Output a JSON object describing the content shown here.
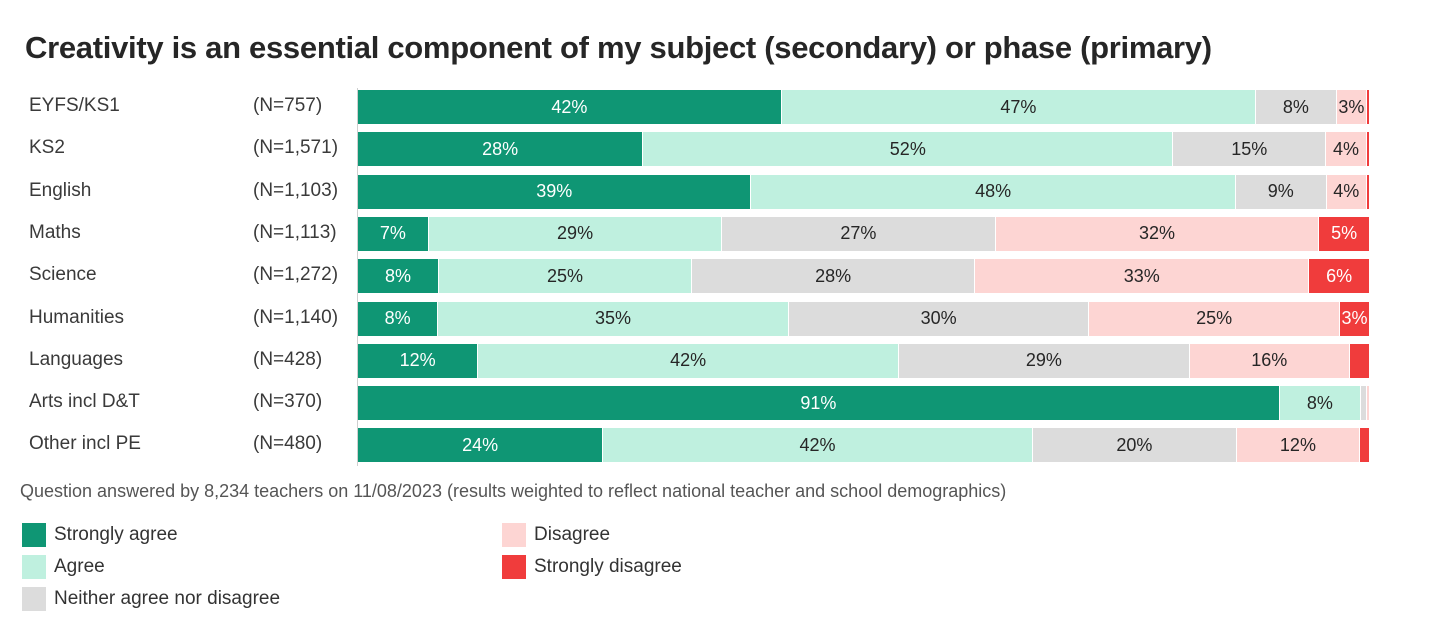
{
  "chart_data": {
    "type": "bar",
    "orientation": "horizontal",
    "stacked": true,
    "percent_stacked": true,
    "title": "Creativity is an essential component of my subject (secondary) or phase (primary)",
    "categories": [
      "EYFS/KS1",
      "KS2",
      "English",
      "Maths",
      "Science",
      "Humanities",
      "Languages",
      "Arts incl D&T",
      "Other incl PE"
    ],
    "n_labels": [
      "(N=757)",
      "(N=1,571)",
      "(N=1,103)",
      "(N=1,113)",
      "(N=1,272)",
      "(N=1,140)",
      "(N=428)",
      "(N=370)",
      "(N=480)"
    ],
    "series": [
      {
        "name": "Strongly agree",
        "color": "#0f9674",
        "text_color": "#ffffff",
        "values": [
          42,
          28,
          39,
          7,
          8,
          8,
          12,
          91,
          24
        ],
        "labels": [
          "42%",
          "28%",
          "39%",
          "7%",
          "8%",
          "8%",
          "12%",
          "91%",
          "24%"
        ]
      },
      {
        "name": "Agree",
        "color": "#bff0df",
        "text_color": "#262626",
        "values": [
          47,
          52,
          48,
          29,
          25,
          35,
          42,
          8,
          42
        ],
        "labels": [
          "47%",
          "52%",
          "48%",
          "29%",
          "25%",
          "35%",
          "42%",
          "8%",
          "42%"
        ]
      },
      {
        "name": "Neither agree nor disagree",
        "color": "#dcdcdc",
        "text_color": "#262626",
        "values": [
          8,
          15,
          9,
          27,
          28,
          30,
          29,
          0.6,
          20
        ],
        "labels": [
          "8%",
          "15%",
          "9%",
          "27%",
          "28%",
          "30%",
          "29%",
          "",
          "20%"
        ]
      },
      {
        "name": "Disagree",
        "color": "#fdd5d3",
        "text_color": "#262626",
        "values": [
          3,
          4,
          4,
          32,
          33,
          25,
          16,
          0.3,
          12
        ],
        "labels": [
          "3%",
          "4%",
          "4%",
          "32%",
          "33%",
          "25%",
          "16%",
          "",
          "12%"
        ]
      },
      {
        "name": "Strongly disagree",
        "color": "#f03c3c",
        "text_color": "#ffffff",
        "values": [
          0.3,
          0.3,
          0.3,
          5,
          6,
          3,
          2,
          0,
          1
        ],
        "labels": [
          "",
          "",
          "",
          "5%",
          "6%",
          "3%",
          "",
          "",
          ""
        ]
      }
    ],
    "legend_position": "bottom-left",
    "grid": false
  },
  "footnote": "Question answered by 8,234 teachers on 11/08/2023 (results weighted to reflect national teacher and school demographics)"
}
